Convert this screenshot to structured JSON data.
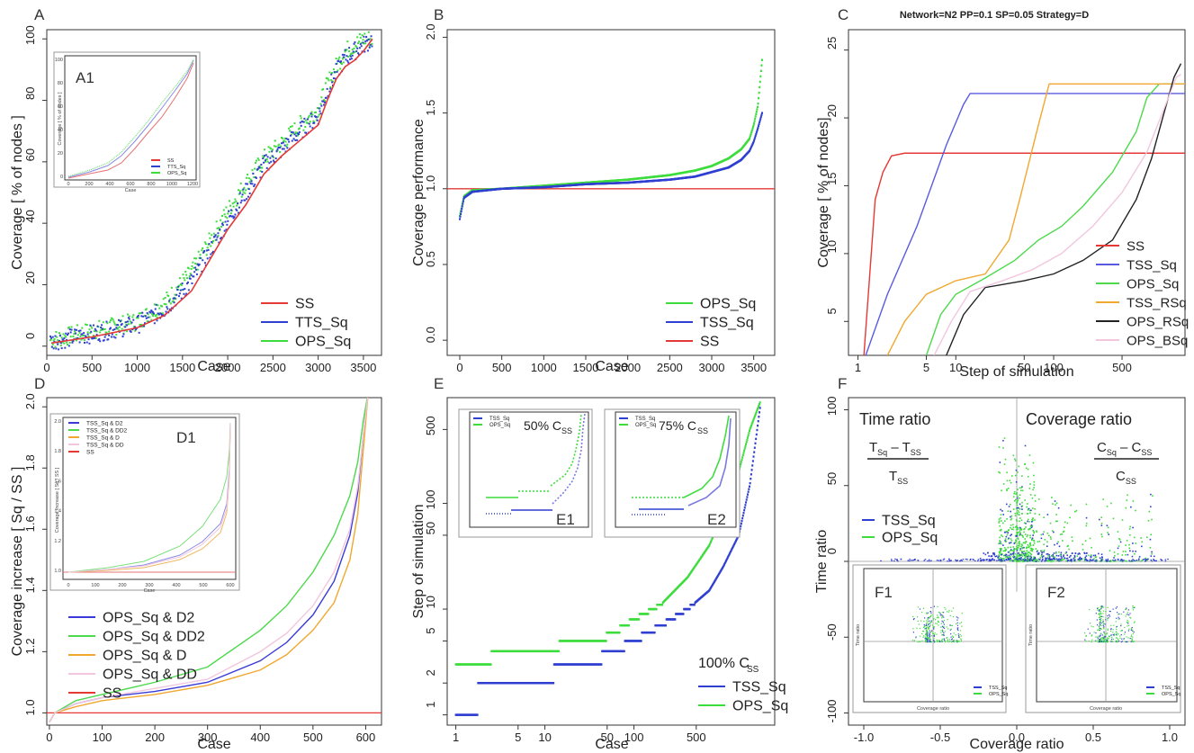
{
  "chart_data": [
    {
      "panel": "A",
      "type": "scatter",
      "ylabel": "Coverage [ % of nodes ]",
      "xlabel": "Case",
      "xlim": [
        0,
        3700
      ],
      "ylim": [
        -3,
        103
      ],
      "xticks": [
        "0",
        "500",
        "1000",
        "1500",
        "2000",
        "2500",
        "3000",
        "3500"
      ],
      "xtickv": [
        0,
        500,
        1000,
        1500,
        2000,
        2500,
        3000,
        3500
      ],
      "yticks": [
        "0",
        "20",
        "40",
        "60",
        "80",
        "100"
      ],
      "ytickv": [
        0,
        20,
        40,
        60,
        80,
        100
      ],
      "series": [
        {
          "name": "SS",
          "color": "#e53935",
          "kind": "line",
          "x": [
            50,
            500,
            1000,
            1300,
            1600,
            1800,
            2000,
            2200,
            2400,
            2600,
            2800,
            3000,
            3100,
            3200,
            3300,
            3400,
            3500,
            3600
          ],
          "y": [
            1,
            3,
            6,
            10,
            18,
            28,
            38,
            46,
            56,
            62,
            67,
            72,
            80,
            87,
            91,
            93,
            96,
            100
          ]
        },
        {
          "name": "TTS_Sq",
          "color": "#2f3fd0",
          "kind": "dots",
          "x": [
            50,
            500,
            1000,
            1300,
            1600,
            1800,
            2000,
            2200,
            2400,
            2600,
            2800,
            3000,
            3100,
            3200,
            3300,
            3400,
            3500,
            3600
          ],
          "y": [
            1.5,
            4,
            7,
            12,
            21,
            31,
            41,
            50,
            59,
            64,
            70,
            75,
            83,
            89,
            94,
            96,
            98,
            100
          ]
        },
        {
          "name": "OPS_Sq",
          "color": "#3ddc3d",
          "kind": "dots",
          "x": [
            50,
            500,
            1000,
            1300,
            1600,
            1800,
            2000,
            2200,
            2400,
            2600,
            2800,
            3000,
            3100,
            3200,
            3300,
            3400,
            3500,
            3600
          ],
          "y": [
            2,
            5,
            8,
            14,
            24,
            34,
            44,
            53,
            61,
            66,
            72,
            77,
            85,
            91,
            96,
            98,
            100,
            100
          ]
        }
      ],
      "inset": {
        "label": "A1",
        "ylabel": "Coverage [ % of nodes ]",
        "xlabel": "Case",
        "xticks": [
          "0",
          "200",
          "400",
          "600",
          "800",
          "1000",
          "1200"
        ],
        "yticks": [
          "0",
          "20",
          "40",
          "60",
          "80",
          "100"
        ],
        "legend": [
          {
            "name": "SS",
            "color": "#e53935"
          },
          {
            "name": "TTS_Sq",
            "color": "#2f3fd0"
          },
          {
            "name": "OPS_Sq",
            "color": "#3ddc3d"
          }
        ]
      }
    },
    {
      "panel": "B",
      "type": "scatter",
      "ylabel": "Coverage performance",
      "xlabel": "Case",
      "xlim": [
        -150,
        3750
      ],
      "ylim": [
        -0.1,
        2.05
      ],
      "xticks": [
        "0",
        "500",
        "1000",
        "1500",
        "2000",
        "2500",
        "3000",
        "3500"
      ],
      "xtickv": [
        0,
        500,
        1000,
        1500,
        2000,
        2500,
        3000,
        3500
      ],
      "yticks": [
        "0.0",
        "0.5",
        "1.0",
        "1.5",
        "2.0"
      ],
      "ytickv": [
        0,
        0.5,
        1,
        1.5,
        2
      ],
      "hline": {
        "y": 1.0,
        "color": "#e53935"
      },
      "series": [
        {
          "name": "OPS_Sq",
          "color": "#3ddc3d",
          "x": [
            0,
            50,
            150,
            500,
            1000,
            1500,
            2000,
            2500,
            2800,
            3000,
            3200,
            3350,
            3450,
            3500,
            3550,
            3600
          ],
          "y": [
            0.82,
            0.95,
            0.99,
            1.0,
            1.02,
            1.04,
            1.06,
            1.09,
            1.12,
            1.15,
            1.2,
            1.26,
            1.33,
            1.42,
            1.55,
            1.85
          ]
        },
        {
          "name": "TSS_Sq",
          "color": "#2f3fd0",
          "x": [
            0,
            50,
            150,
            500,
            1000,
            1500,
            2000,
            2500,
            2800,
            3000,
            3200,
            3350,
            3450,
            3500,
            3550,
            3600
          ],
          "y": [
            0.8,
            0.94,
            0.98,
            1.0,
            1.01,
            1.03,
            1.04,
            1.06,
            1.08,
            1.11,
            1.14,
            1.19,
            1.25,
            1.31,
            1.4,
            1.5
          ]
        },
        {
          "name": "SS",
          "color": "#e53935",
          "x": [],
          "y": []
        }
      ]
    },
    {
      "panel": "C",
      "type": "line",
      "title": "Network=N2 PP=0.1 SP=0.05 Strategy=D",
      "ylabel": "Coverage [ % of nodes]",
      "xlabel": "Step of simulation",
      "xscale": "log",
      "xlim": [
        0.8,
        2200
      ],
      "ylim": [
        2.5,
        26.5
      ],
      "xticks": [
        "1",
        "5",
        "10",
        "50",
        "100",
        "500"
      ],
      "xtickv": [
        1,
        5,
        10,
        50,
        100,
        500
      ],
      "yticks": [
        "5",
        "10",
        "15",
        "20",
        "25"
      ],
      "ytickv": [
        5,
        10,
        15,
        20,
        25
      ],
      "series": [
        {
          "name": "SS",
          "color": "#e53935",
          "x": [
            1.15,
            1.5,
            1.8,
            2.2,
            3,
            10000
          ],
          "y": [
            2.5,
            14,
            16,
            17.2,
            17.4,
            17.4
          ]
        },
        {
          "name": "TSS_Sq",
          "color": "#5a5ae0",
          "x": [
            1.2,
            2,
            4,
            8,
            12,
            14,
            16,
            10000
          ],
          "y": [
            2.5,
            7,
            12,
            18,
            21,
            21.8,
            21.8,
            21.8
          ]
        },
        {
          "name": "OPS_Sq",
          "color": "#4cd94c",
          "x": [
            5,
            7,
            10,
            20,
            40,
            70,
            120,
            200,
            400,
            700,
            900,
            1200,
            10000
          ],
          "y": [
            2.5,
            5.5,
            7,
            8.2,
            9.5,
            11,
            12,
            13.5,
            16,
            19,
            21.5,
            22.5,
            22.5
          ]
        },
        {
          "name": "TSS_RSq",
          "color": "#f0a830",
          "x": [
            2,
            3,
            5,
            10,
            20,
            35,
            45,
            55,
            70,
            90,
            10000
          ],
          "y": [
            2.5,
            5,
            7,
            8,
            8.5,
            11,
            14,
            16.5,
            19.5,
            22.5,
            22.5
          ]
        },
        {
          "name": "OPS_RSq",
          "color": "#222222",
          "x": [
            8,
            12,
            20,
            50,
            100,
            200,
            400,
            700,
            1000,
            1300,
            1700,
            2000
          ],
          "y": [
            2.5,
            5.5,
            7.5,
            8,
            8.5,
            9.5,
            11,
            14,
            17,
            20,
            23,
            24
          ]
        },
        {
          "name": "OPS_BSq",
          "color": "#f2c6de",
          "x": [
            6,
            9,
            14,
            30,
            60,
            120,
            250,
            500,
            900,
            1400,
            1800,
            2000
          ],
          "y": [
            2.5,
            5,
            7.2,
            8,
            8.8,
            10,
            12,
            14.5,
            17.5,
            21,
            23,
            23.2
          ]
        }
      ]
    },
    {
      "panel": "D",
      "type": "line",
      "ylabel": "Coverage increase [ Sq / SS ]",
      "xlabel": "Case",
      "xlim": [
        -5,
        630
      ],
      "ylim": [
        0.96,
        2.03
      ],
      "xticks": [
        "0",
        "100",
        "200",
        "300",
        "400",
        "500",
        "600"
      ],
      "xtickv": [
        0,
        100,
        200,
        300,
        400,
        500,
        600
      ],
      "yticks": [
        "1.0",
        "1.2",
        "1.4",
        "1.6",
        "1.8",
        "2.0"
      ],
      "ytickv": [
        1,
        1.2,
        1.4,
        1.6,
        1.8,
        2
      ],
      "hline": {
        "y": 1.0,
        "color": "#e53935"
      },
      "series": [
        {
          "name": "OPS_Sq & D2",
          "color": "#3a3ad6",
          "x": [
            0,
            10,
            50,
            100,
            200,
            300,
            400,
            450,
            500,
            540,
            570,
            585,
            595,
            605
          ],
          "y": [
            0.97,
            1.0,
            1.03,
            1.05,
            1.07,
            1.1,
            1.17,
            1.23,
            1.32,
            1.43,
            1.58,
            1.72,
            1.9,
            2.05
          ]
        },
        {
          "name": "OPS_Sq & DD2",
          "color": "#4cd94c",
          "x": [
            0,
            10,
            50,
            100,
            200,
            300,
            400,
            450,
            500,
            540,
            570,
            585,
            595,
            605
          ],
          "y": [
            0.97,
            1.0,
            1.04,
            1.06,
            1.1,
            1.15,
            1.27,
            1.35,
            1.46,
            1.58,
            1.71,
            1.82,
            1.95,
            2.05
          ]
        },
        {
          "name": "OPS_Sq & D",
          "color": "#f0a830",
          "x": [
            0,
            10,
            50,
            100,
            200,
            300,
            400,
            450,
            500,
            540,
            570,
            585,
            595,
            605
          ],
          "y": [
            0.97,
            1.0,
            1.02,
            1.04,
            1.06,
            1.09,
            1.14,
            1.19,
            1.27,
            1.36,
            1.5,
            1.65,
            1.85,
            2.05
          ]
        },
        {
          "name": "OPS_Sq & DD",
          "color": "#f2c6de",
          "x": [
            0,
            10,
            50,
            100,
            200,
            300,
            400,
            450,
            500,
            540,
            570,
            585,
            595,
            605
          ],
          "y": [
            0.97,
            1.0,
            1.03,
            1.05,
            1.08,
            1.11,
            1.2,
            1.26,
            1.35,
            1.46,
            1.6,
            1.74,
            1.9,
            2.05
          ]
        },
        {
          "name": "SS",
          "color": "#e53935",
          "x": [],
          "y": []
        }
      ],
      "inset": {
        "label": "D1",
        "ylabel": "Coverage increase [ Sq / SS ]",
        "xlabel": "Case",
        "xticks": [
          "0",
          "100",
          "200",
          "300",
          "400",
          "500",
          "600"
        ],
        "yticks": [
          "1.0",
          "1.2",
          "1.4",
          "1.6",
          "1.8",
          "2.0"
        ],
        "legend": [
          {
            "name": "TSS_Sq & D2",
            "color": "#3a3ad6"
          },
          {
            "name": "TSS_Sq & DD2",
            "color": "#4cd94c"
          },
          {
            "name": "TSS_Sq & D",
            "color": "#f0a830"
          },
          {
            "name": "TSS_Sq & DD",
            "color": "#f2c6de"
          },
          {
            "name": "SS",
            "color": "#e53935"
          }
        ]
      }
    },
    {
      "panel": "E",
      "type": "scatter",
      "ylabel": "Step of simulation",
      "xlabel": "Case",
      "xscale": "log",
      "yscale": "log",
      "xlim": [
        0.8,
        3800
      ],
      "ylim": [
        0.8,
        1000
      ],
      "xticks": [
        "1",
        "5",
        "10",
        "50",
        "100",
        "500"
      ],
      "xtickv": [
        1,
        5,
        10,
        50,
        100,
        500
      ],
      "yticks": [
        "1",
        "2",
        "5",
        "10",
        "50",
        "100",
        "500"
      ],
      "ytickv": [
        1,
        2,
        5,
        10,
        50,
        100,
        500
      ],
      "annotation": "100% C",
      "annotation_sub": "SS",
      "series": [
        {
          "name": "TSS_Sq",
          "color": "#2f3fd0",
          "x": [
            1,
            1.5,
            2,
            10,
            15,
            30,
            60,
            100,
            200,
            400,
            700,
            1000,
            1500,
            2000,
            2600
          ],
          "y": [
            1,
            1,
            2,
            2,
            3,
            3,
            4,
            5,
            7,
            10,
            15,
            25,
            50,
            150,
            800
          ]
        },
        {
          "name": "OPS_Sq",
          "color": "#3ddc3d",
          "x": [
            1,
            1.5,
            2,
            3,
            10,
            20,
            40,
            60,
            100,
            200,
            400,
            700,
            1000,
            1500,
            2000,
            2600
          ],
          "y": [
            3,
            3,
            3,
            4,
            4,
            5,
            5,
            6,
            8,
            11,
            20,
            40,
            80,
            200,
            500,
            900
          ]
        }
      ],
      "insets": [
        {
          "label": "E1",
          "text": "50% C",
          "sub": "SS",
          "legend": [
            "TSS_Sq",
            "OPS_Sq"
          ]
        },
        {
          "label": "E2",
          "text": "75% C",
          "sub": "SS",
          "legend": [
            "TSS_Sq",
            "OPS_Sq"
          ]
        }
      ]
    },
    {
      "panel": "F",
      "type": "scatter",
      "ylabel": "Time ratio",
      "xlabel": "Coverage ratio",
      "xlim": [
        -1.1,
        1.1
      ],
      "ylim": [
        -108,
        108
      ],
      "xticks": [
        "-1.0",
        "-0.5",
        "0.0",
        "0.5",
        "1.0"
      ],
      "xtickv": [
        -1,
        -0.5,
        0,
        0.5,
        1
      ],
      "yticks": [
        "-100",
        "-50",
        "0",
        "50",
        "100"
      ],
      "ytickv": [
        -100,
        -50,
        0,
        50,
        100
      ],
      "left_title": "Time ratio",
      "right_title": "Coverage ratio",
      "left_formula": {
        "num1": "T",
        "num1_sub": "Sq",
        "minus": "– ",
        "num2": "T",
        "num2_sub": "SS",
        "den": "T",
        "den_sub": "SS"
      },
      "right_formula": {
        "num1": "C",
        "num1_sub": "Sq",
        "minus": "– ",
        "num2": "C",
        "num2_sub": "SS",
        "den": "C",
        "den_sub": "SS"
      },
      "series": [
        {
          "name": "TSS_Sq",
          "color": "#2f3fd0"
        },
        {
          "name": "OPS_Sq",
          "color": "#3ddc3d"
        }
      ],
      "insets": [
        {
          "label": "F1",
          "ylabel": "Time ratio",
          "xlabel": "Coverage ratio",
          "legend": [
            "TSS_Sq",
            "OPS_Sq"
          ]
        },
        {
          "label": "F2",
          "ylabel": "Time ratio",
          "xlabel": "Coverage ratio",
          "legend": [
            "TSS_Sq",
            "OPS_Sq"
          ]
        }
      ]
    }
  ]
}
